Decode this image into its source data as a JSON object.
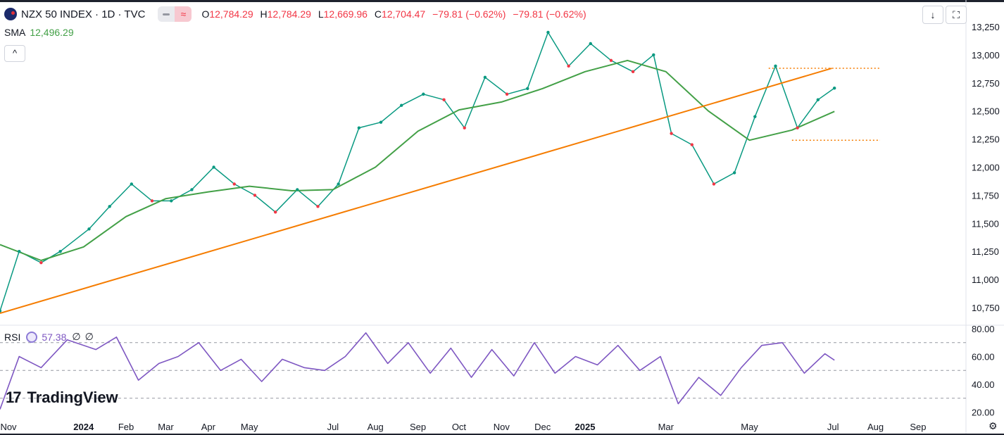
{
  "header": {
    "title": "NZX 50 INDEX · 1D · TVC",
    "pill_icon": "≈",
    "ohlc": [
      {
        "key": "O",
        "value": "12,784.29"
      },
      {
        "key": "H",
        "value": "12,784.29"
      },
      {
        "key": "L",
        "value": "12,669.96"
      },
      {
        "key": "C",
        "value": "12,704.47"
      }
    ],
    "change": "−79.81 (−0.62%)",
    "change2": "−79.81 (−0.62%)",
    "down_color": "#f23645",
    "up_color": "#089981"
  },
  "sma": {
    "label": "SMA",
    "value": "12,496.29",
    "color": "#43a047"
  },
  "toolbar": {
    "collapse_icon": "chevron-up-icon",
    "download_icon": "download-icon",
    "fullscreen_icon": "fullscreen-icon"
  },
  "rsi": {
    "label": "RSI",
    "value": "57.38",
    "extra1": "∅",
    "extra2": "∅",
    "color": "#7e57c2"
  },
  "branding": {
    "logo_mark": "17",
    "logo_text": "TradingView"
  },
  "settings_icon": "gear-icon",
  "chart_data": [
    {
      "type": "line",
      "title": "NZX 50 INDEX · 1D · TVC",
      "x_tick_labels": [
        "Nov",
        "2024",
        "Feb",
        "Mar",
        "Apr",
        "May",
        "Jul",
        "Aug",
        "Sep",
        "Oct",
        "Nov",
        "Dec",
        "2025",
        "Mar",
        "May",
        "Jul",
        "Aug",
        "Sep"
      ],
      "y_tick_labels": [
        "13,250",
        "13,000",
        "12,750",
        "12,500",
        "12,250",
        "12,000",
        "11,750",
        "11,500",
        "11,250",
        "11,000",
        "10,750"
      ],
      "ylim": [
        10650,
        13320
      ],
      "series": [
        {
          "name": "NZX 50 INDEX",
          "color": "#089981",
          "x": [
            "2023-11-01",
            "2023-11-15",
            "2023-12-01",
            "2023-12-15",
            "2024-01-05",
            "2024-01-20",
            "2024-02-05",
            "2024-02-20",
            "2024-03-05",
            "2024-03-20",
            "2024-04-05",
            "2024-04-20",
            "2024-05-05",
            "2024-05-20",
            "2024-06-05",
            "2024-06-20",
            "2024-07-05",
            "2024-07-20",
            "2024-08-05",
            "2024-08-20",
            "2024-09-05",
            "2024-09-20",
            "2024-10-05",
            "2024-10-20",
            "2024-11-05",
            "2024-11-20",
            "2024-12-05",
            "2024-12-20",
            "2025-01-05",
            "2025-01-20",
            "2025-02-05",
            "2025-02-20",
            "2025-03-05",
            "2025-03-20",
            "2025-04-05",
            "2025-04-20",
            "2025-05-05",
            "2025-05-20",
            "2025-06-05",
            "2025-06-20",
            "2025-07-02"
          ],
          "values": [
            10720,
            11250,
            11150,
            11250,
            11450,
            11650,
            11850,
            11700,
            11700,
            11800,
            12000,
            11850,
            11750,
            11600,
            11800,
            11650,
            11850,
            12350,
            12400,
            12550,
            12650,
            12600,
            12350,
            12800,
            12650,
            12700,
            13200,
            12900,
            13100,
            12950,
            12850,
            13000,
            12300,
            12200,
            11850,
            11950,
            12450,
            12900,
            12350,
            12600,
            12704
          ]
        },
        {
          "name": "SMA",
          "color": "#43a047",
          "x": [
            "2023-11-01",
            "2023-12-01",
            "2024-01-01",
            "2024-02-01",
            "2024-03-01",
            "2024-04-01",
            "2024-05-01",
            "2024-06-01",
            "2024-07-01",
            "2024-08-01",
            "2024-09-01",
            "2024-10-01",
            "2024-11-01",
            "2024-12-01",
            "2025-01-01",
            "2025-02-01",
            "2025-03-01",
            "2025-04-01",
            "2025-05-01",
            "2025-06-01",
            "2025-07-02"
          ],
          "values": [
            11310,
            11170,
            11290,
            11560,
            11720,
            11780,
            11830,
            11790,
            11800,
            12000,
            12320,
            12510,
            12580,
            12700,
            12850,
            12950,
            12850,
            12500,
            12240,
            12330,
            12496
          ]
        },
        {
          "name": "Trendline",
          "color": "#f57c00",
          "x": [
            "2023-11-01",
            "2025-06-30"
          ],
          "values": [
            10700,
            12880
          ]
        }
      ],
      "resistance": 12880,
      "support": 12240
    },
    {
      "type": "line",
      "title": "RSI",
      "y_tick_labels": [
        "80.00",
        "60.00",
        "40.00",
        "20.00"
      ],
      "ylim": [
        20,
        80
      ],
      "levels": [
        70,
        50,
        30
      ],
      "series": [
        {
          "name": "RSI",
          "color": "#7e57c2",
          "x": [
            "2023-11-01",
            "2023-11-15",
            "2023-12-01",
            "2023-12-20",
            "2024-01-10",
            "2024-01-25",
            "2024-02-10",
            "2024-02-25",
            "2024-03-10",
            "2024-03-25",
            "2024-04-10",
            "2024-04-25",
            "2024-05-10",
            "2024-05-25",
            "2024-06-10",
            "2024-06-25",
            "2024-07-10",
            "2024-07-25",
            "2024-08-10",
            "2024-08-25",
            "2024-09-10",
            "2024-09-25",
            "2024-10-10",
            "2024-10-25",
            "2024-11-10",
            "2024-11-25",
            "2024-12-10",
            "2024-12-25",
            "2025-01-10",
            "2025-01-25",
            "2025-02-10",
            "2025-02-25",
            "2025-03-10",
            "2025-03-25",
            "2025-04-10",
            "2025-04-25",
            "2025-05-10",
            "2025-05-25",
            "2025-06-10",
            "2025-06-25",
            "2025-07-02"
          ],
          "values": [
            22,
            60,
            52,
            72,
            65,
            74,
            43,
            55,
            60,
            70,
            50,
            58,
            42,
            58,
            52,
            50,
            60,
            77,
            55,
            70,
            48,
            66,
            45,
            65,
            46,
            70,
            48,
            60,
            54,
            68,
            50,
            60,
            26,
            45,
            32,
            52,
            68,
            70,
            48,
            62,
            57.38
          ]
        }
      ]
    }
  ]
}
